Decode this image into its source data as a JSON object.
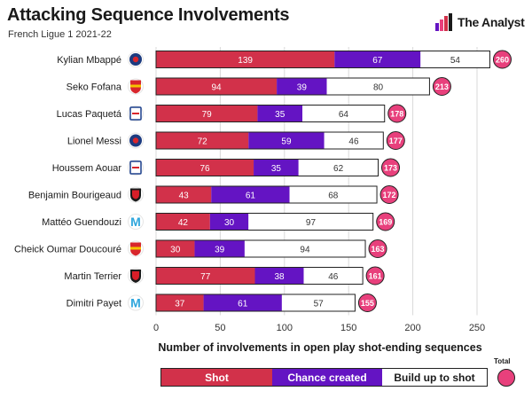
{
  "header": {
    "title": "Attacking Sequence Involvements",
    "subtitle": "French Ligue 1 2021-22",
    "brand": "The Analyst"
  },
  "colors": {
    "shot": "#d2314a",
    "chance": "#6414c3",
    "buildup": "#ffffff",
    "total": "#e8407c",
    "psg": "#1c3b80",
    "lens": "#d8262c",
    "lyon": "#1b3f8c",
    "rennes": "#d81e28",
    "marseille": "#2fa6dc"
  },
  "chart_data": {
    "type": "bar",
    "orientation": "horizontal",
    "stacked": true,
    "title": "Attacking Sequence Involvements",
    "subtitle": "French Ligue 1 2021-22",
    "xlabel": "Number of involvements in open play shot-ending sequences",
    "xlim": [
      0,
      260
    ],
    "xticks": [
      0,
      50,
      100,
      150,
      200,
      250
    ],
    "grid": true,
    "categories": [
      "Kylian Mbappé",
      "Seko Fofana",
      "Lucas Paquetá",
      "Lionel Messi",
      "Houssem Aouar",
      "Benjamin Bourigeaud",
      "Mattéo Guendouzi",
      "Cheick Oumar Doucouré",
      "Martin Terrier",
      "Dimitri Payet"
    ],
    "clubs": [
      "psg",
      "lens",
      "lyon",
      "psg",
      "lyon",
      "rennes",
      "marseille",
      "lens",
      "rennes",
      "marseille"
    ],
    "series": [
      {
        "name": "Shot",
        "values": [
          139,
          94,
          79,
          72,
          76,
          43,
          42,
          30,
          77,
          37
        ]
      },
      {
        "name": "Chance created",
        "values": [
          67,
          39,
          35,
          59,
          35,
          61,
          30,
          39,
          38,
          61
        ]
      },
      {
        "name": "Build up to shot",
        "values": [
          54,
          80,
          64,
          46,
          62,
          68,
          97,
          94,
          46,
          57
        ]
      }
    ],
    "totals": [
      260,
      213,
      178,
      177,
      173,
      172,
      169,
      163,
      161,
      155
    ],
    "legend": {
      "position": "bottom",
      "labels": [
        "Shot",
        "Chance created",
        "Build up to shot"
      ],
      "total_label": "Total"
    }
  }
}
